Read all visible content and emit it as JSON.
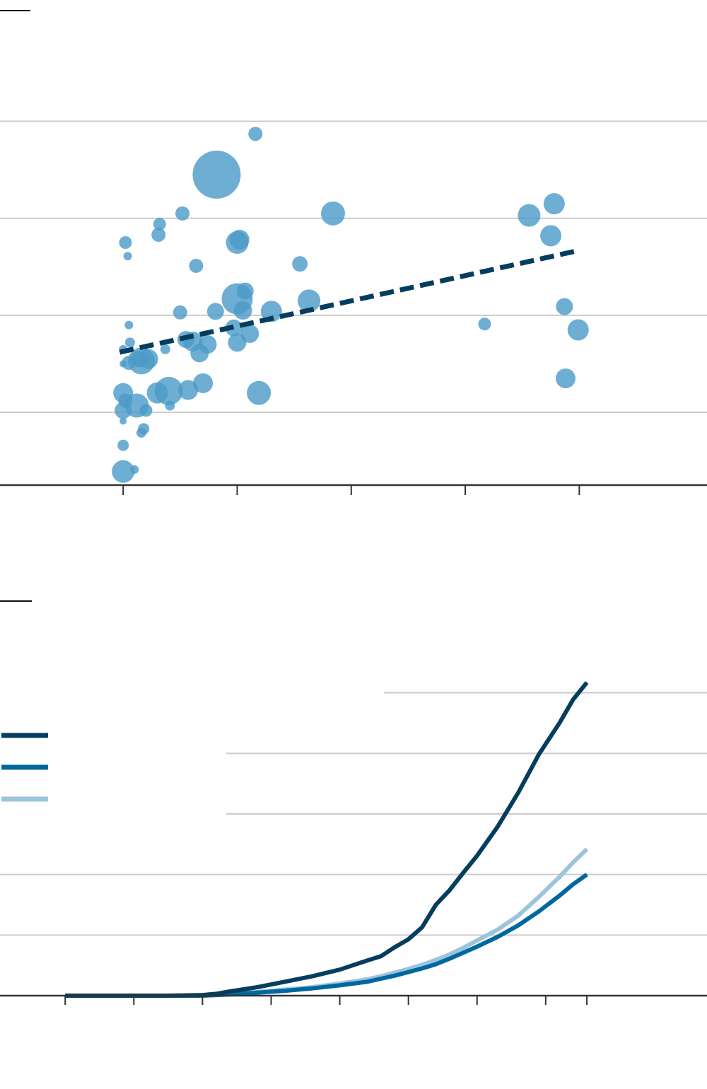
{
  "colors": {
    "bubble": "#4a9ac7",
    "trendline": "#053d5e",
    "series_dark": "#053d5e",
    "series_mid": "#00689f",
    "series_light": "#9cc4dd",
    "grid": "#cccccc",
    "axis": "#333333"
  },
  "chart_data": [
    {
      "type": "scatter",
      "title": "",
      "xlabel": "",
      "ylabel": "",
      "x_ticks": [
        0,
        1,
        2,
        3,
        4
      ],
      "xlim": [
        -1.08,
        5.12
      ],
      "y_gridlines": [
        0.75,
        1.75,
        2.75,
        3.75
      ],
      "ylim": [
        0,
        5.0
      ],
      "grid": "horizontal",
      "trendline": {
        "style": "dashed",
        "x": [
          -0.03,
          4.0
        ],
        "y": [
          1.37,
          2.42
        ]
      },
      "points": [
        {
          "x": 0.0,
          "y": 0.14,
          "size": 16
        },
        {
          "x": 0.1,
          "y": 0.16,
          "size": 6
        },
        {
          "x": 0.0,
          "y": 0.41,
          "size": 8
        },
        {
          "x": 0.18,
          "y": 0.58,
          "size": 8
        },
        {
          "x": 0.16,
          "y": 0.54,
          "size": 7
        },
        {
          "x": 0.0,
          "y": 0.66,
          "size": 5
        },
        {
          "x": 0.2,
          "y": 0.77,
          "size": 9
        },
        {
          "x": 0.0,
          "y": 0.77,
          "size": 12
        },
        {
          "x": 0.12,
          "y": 0.82,
          "size": 17
        },
        {
          "x": 0.02,
          "y": 0.87,
          "size": 10
        },
        {
          "x": 0.0,
          "y": 0.95,
          "size": 14
        },
        {
          "x": 0.3,
          "y": 0.95,
          "size": 15
        },
        {
          "x": 0.4,
          "y": 0.97,
          "size": 20
        },
        {
          "x": 0.41,
          "y": 0.82,
          "size": 7
        },
        {
          "x": 0.57,
          "y": 0.98,
          "size": 14
        },
        {
          "x": 0.7,
          "y": 1.05,
          "size": 14
        },
        {
          "x": 1.19,
          "y": 0.95,
          "size": 17
        },
        {
          "x": 0.0,
          "y": 1.25,
          "size": 5
        },
        {
          "x": 0.05,
          "y": 1.26,
          "size": 10
        },
        {
          "x": 0.14,
          "y": 1.3,
          "size": 12
        },
        {
          "x": 0.16,
          "y": 1.28,
          "size": 19
        },
        {
          "x": 0.22,
          "y": 1.3,
          "size": 14
        },
        {
          "x": 0.0,
          "y": 1.4,
          "size": 6
        },
        {
          "x": 0.37,
          "y": 1.4,
          "size": 7
        },
        {
          "x": 0.67,
          "y": 1.36,
          "size": 13
        },
        {
          "x": 0.55,
          "y": 1.5,
          "size": 12
        },
        {
          "x": 0.61,
          "y": 1.48,
          "size": 14
        },
        {
          "x": 0.74,
          "y": 1.45,
          "size": 13
        },
        {
          "x": 0.06,
          "y": 1.47,
          "size": 7
        },
        {
          "x": 0.05,
          "y": 1.65,
          "size": 6
        },
        {
          "x": 1.0,
          "y": 1.47,
          "size": 13
        },
        {
          "x": 1.11,
          "y": 1.56,
          "size": 13
        },
        {
          "x": 0.97,
          "y": 1.62,
          "size": 12
        },
        {
          "x": 0.5,
          "y": 1.78,
          "size": 10
        },
        {
          "x": 0.81,
          "y": 1.79,
          "size": 12
        },
        {
          "x": 1.0,
          "y": 1.92,
          "size": 22
        },
        {
          "x": 1.05,
          "y": 1.8,
          "size": 13
        },
        {
          "x": 1.07,
          "y": 2.0,
          "size": 12
        },
        {
          "x": 1.3,
          "y": 1.79,
          "size": 15
        },
        {
          "x": 1.63,
          "y": 1.9,
          "size": 16
        },
        {
          "x": 1.55,
          "y": 2.28,
          "size": 11
        },
        {
          "x": 0.64,
          "y": 2.26,
          "size": 10
        },
        {
          "x": 0.02,
          "y": 2.5,
          "size": 9
        },
        {
          "x": 0.04,
          "y": 2.36,
          "size": 6
        },
        {
          "x": 0.31,
          "y": 2.58,
          "size": 10
        },
        {
          "x": 0.32,
          "y": 2.69,
          "size": 9
        },
        {
          "x": 0.52,
          "y": 2.8,
          "size": 10
        },
        {
          "x": 1.0,
          "y": 2.5,
          "size": 16
        },
        {
          "x": 1.02,
          "y": 2.53,
          "size": 14
        },
        {
          "x": 1.84,
          "y": 2.8,
          "size": 17
        },
        {
          "x": 0.82,
          "y": 3.2,
          "size": 34
        },
        {
          "x": 1.16,
          "y": 3.62,
          "size": 10
        },
        {
          "x": 3.17,
          "y": 1.66,
          "size": 9
        },
        {
          "x": 3.56,
          "y": 2.78,
          "size": 16
        },
        {
          "x": 3.78,
          "y": 2.9,
          "size": 15
        },
        {
          "x": 3.75,
          "y": 2.57,
          "size": 15
        },
        {
          "x": 3.87,
          "y": 1.84,
          "size": 12
        },
        {
          "x": 3.99,
          "y": 1.6,
          "size": 15
        },
        {
          "x": 3.88,
          "y": 1.1,
          "size": 14
        }
      ]
    },
    {
      "type": "line",
      "title": "",
      "xlabel": "",
      "ylabel": "",
      "x_ticks": [
        0,
        1,
        2,
        3,
        4,
        5,
        6,
        7
      ],
      "xlim": [
        -0.95,
        9.35
      ],
      "y_gridlines": [
        1,
        2,
        3,
        4,
        5
      ],
      "ylim": [
        0,
        6
      ],
      "grid": "horizontal",
      "legend": "left",
      "series": [
        {
          "color_key": "series_dark",
          "x": [
            0,
            1,
            1.5,
            2,
            2.2,
            2.4,
            2.8,
            3.2,
            3.6,
            4.0,
            4.4,
            4.6,
            4.8,
            5.0,
            5.2,
            5.4,
            5.6,
            5.8,
            6.0,
            6.3,
            6.6,
            6.9,
            7.2,
            7.4,
            7.6
          ],
          "y": [
            0,
            0,
            0,
            0.01,
            0.03,
            0.07,
            0.14,
            0.23,
            0.32,
            0.43,
            0.58,
            0.65,
            0.8,
            0.93,
            1.13,
            1.5,
            1.74,
            2.03,
            2.31,
            2.79,
            3.35,
            3.98,
            4.5,
            4.89,
            5.17
          ]
        },
        {
          "color_key": "series_mid",
          "x": [
            0,
            1,
            1.5,
            2,
            2.2,
            2.4,
            2.8,
            3.2,
            3.6,
            4.0,
            4.4,
            4.6,
            4.8,
            5.0,
            5.2,
            5.4,
            5.6,
            5.8,
            6.0,
            6.3,
            6.6,
            6.9,
            7.2,
            7.4,
            7.6
          ],
          "y": [
            0,
            0,
            0,
            0,
            0.01,
            0.02,
            0.05,
            0.08,
            0.12,
            0.17,
            0.23,
            0.28,
            0.33,
            0.39,
            0.45,
            0.52,
            0.61,
            0.71,
            0.81,
            0.97,
            1.16,
            1.39,
            1.65,
            1.84,
            2.0
          ]
        },
        {
          "color_key": "series_light",
          "x": [
            0,
            1,
            1.5,
            2,
            2.2,
            2.4,
            2.8,
            3.2,
            3.6,
            4.0,
            4.4,
            4.6,
            4.8,
            5.0,
            5.2,
            5.4,
            5.6,
            5.8,
            6.0,
            6.3,
            6.6,
            6.9,
            7.2,
            7.4,
            7.6
          ],
          "y": [
            0,
            0,
            0,
            0,
            0.01,
            0.03,
            0.06,
            0.1,
            0.14,
            0.2,
            0.27,
            0.32,
            0.38,
            0.44,
            0.51,
            0.59,
            0.68,
            0.79,
            0.91,
            1.09,
            1.32,
            1.63,
            1.96,
            2.2,
            2.42
          ]
        }
      ]
    }
  ]
}
